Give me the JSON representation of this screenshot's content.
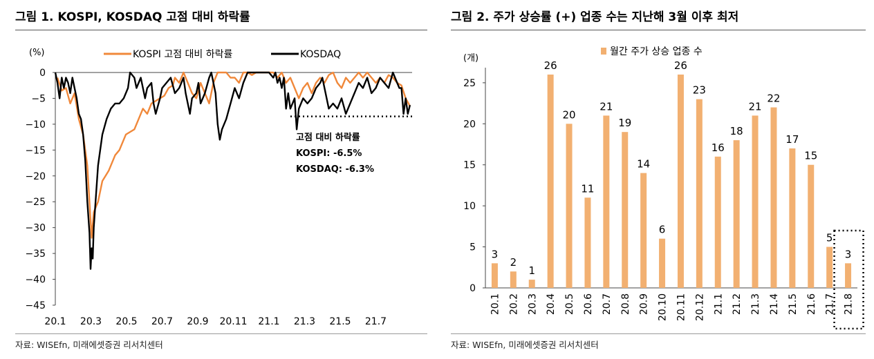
{
  "left": {
    "title": "그림 1. KOSPI, KOSDAQ 고점 대비 하락률",
    "source": "자료: WISEfn, 미래에셋증권 리서치센터",
    "chart_data": {
      "type": "line",
      "unit_label": "(%)",
      "ylim": [
        -45,
        0
      ],
      "y_ticks": [
        0,
        -5,
        -10,
        -15,
        -20,
        -25,
        -30,
        -35,
        -40,
        -45
      ],
      "y_tick_labels": [
        "0",
        "-5",
        "-10",
        "-15",
        "-20",
        "-25",
        "-30",
        "-35",
        "-40",
        "-45"
      ],
      "x_tick_labels": [
        "20.1",
        "20.3",
        "20.5",
        "20.7",
        "20.9",
        "20.11",
        "21.1",
        "21.3",
        "21.5",
        "21.7"
      ],
      "x_start": 2020.0,
      "x_end": 2021.67,
      "reference_level": -8.5,
      "annotation": {
        "heading": "고점 대비 하락률",
        "lines": [
          "KOSPI: -6.5%",
          "KOSDAQ: -6.3%"
        ]
      },
      "series": [
        {
          "name": "KOSPI 고점 대비 하락률",
          "color": "#f0883a",
          "points": [
            [
              20.01,
              -1
            ],
            [
              20.03,
              -3.5
            ],
            [
              20.05,
              -3
            ],
            [
              20.07,
              -6
            ],
            [
              20.09,
              -4
            ],
            [
              20.11,
              -9
            ],
            [
              20.13,
              -12
            ],
            [
              20.15,
              -18
            ],
            [
              20.16,
              -25
            ],
            [
              20.17,
              -32
            ],
            [
              20.18,
              -27
            ],
            [
              20.2,
              -25
            ],
            [
              20.22,
              -21
            ],
            [
              20.25,
              -19
            ],
            [
              20.28,
              -16
            ],
            [
              20.3,
              -15
            ],
            [
              20.33,
              -12
            ],
            [
              20.37,
              -11
            ],
            [
              20.39,
              -9
            ],
            [
              20.41,
              -7
            ],
            [
              20.43,
              -8
            ],
            [
              20.45,
              -6
            ],
            [
              20.47,
              -5.5
            ],
            [
              20.49,
              -5
            ],
            [
              20.51,
              -4.5
            ],
            [
              20.53,
              -3
            ],
            [
              20.55,
              -2.5
            ],
            [
              20.56,
              -1
            ],
            [
              20.58,
              -2
            ],
            [
              20.6,
              0
            ],
            [
              20.62,
              -2
            ],
            [
              20.64,
              -4
            ],
            [
              20.66,
              -5
            ],
            [
              20.68,
              -2
            ],
            [
              20.7,
              -4
            ],
            [
              20.72,
              -6
            ],
            [
              20.74,
              -2
            ],
            [
              20.76,
              0
            ],
            [
              20.78,
              0
            ],
            [
              20.8,
              0
            ],
            [
              20.82,
              -1
            ],
            [
              20.84,
              -1
            ],
            [
              20.86,
              -2
            ],
            [
              20.88,
              0
            ],
            [
              20.9,
              0
            ],
            [
              20.92,
              -0.5
            ],
            [
              20.94,
              0
            ],
            [
              21.0,
              0
            ],
            [
              21.02,
              0
            ],
            [
              21.04,
              -1
            ],
            [
              21.06,
              0
            ],
            [
              21.08,
              -2
            ],
            [
              21.1,
              -1
            ],
            [
              21.12,
              -3
            ],
            [
              21.14,
              -5
            ],
            [
              21.16,
              -3
            ],
            [
              21.18,
              -2
            ],
            [
              21.2,
              -4
            ],
            [
              21.22,
              -2
            ],
            [
              21.24,
              -1
            ],
            [
              21.26,
              -2
            ],
            [
              21.28,
              -0.5
            ],
            [
              21.3,
              0
            ],
            [
              21.32,
              -2
            ],
            [
              21.34,
              -3
            ],
            [
              21.36,
              -1
            ],
            [
              21.38,
              -2
            ],
            [
              21.4,
              -1
            ],
            [
              21.42,
              0
            ],
            [
              21.44,
              -1
            ],
            [
              21.46,
              0
            ],
            [
              21.48,
              -1
            ],
            [
              21.5,
              -2
            ],
            [
              21.52,
              -1
            ],
            [
              21.54,
              -2
            ],
            [
              21.56,
              -0.5
            ],
            [
              21.58,
              -1
            ],
            [
              21.6,
              -2
            ],
            [
              21.62,
              -2.5
            ],
            [
              21.64,
              -5
            ],
            [
              21.66,
              -6.5
            ]
          ]
        },
        {
          "name": "KOSDAQ",
          "color": "#000000",
          "points": [
            [
              20.0,
              0
            ],
            [
              20.01,
              -2
            ],
            [
              20.02,
              -5
            ],
            [
              20.03,
              -1
            ],
            [
              20.04,
              -3
            ],
            [
              20.05,
              -1
            ],
            [
              20.06,
              -2
            ],
            [
              20.07,
              -4
            ],
            [
              20.08,
              -1
            ],
            [
              20.09,
              -3
            ],
            [
              20.1,
              -5
            ],
            [
              20.11,
              -8
            ],
            [
              20.12,
              -9
            ],
            [
              20.13,
              -12
            ],
            [
              20.14,
              -17
            ],
            [
              20.15,
              -25
            ],
            [
              20.16,
              -31
            ],
            [
              20.165,
              -38
            ],
            [
              20.17,
              -34
            ],
            [
              20.175,
              -36
            ],
            [
              20.18,
              -30
            ],
            [
              20.19,
              -24
            ],
            [
              20.2,
              -18
            ],
            [
              20.22,
              -12
            ],
            [
              20.24,
              -9
            ],
            [
              20.26,
              -7
            ],
            [
              20.28,
              -6
            ],
            [
              20.3,
              -6
            ],
            [
              20.32,
              -5
            ],
            [
              20.34,
              -3
            ],
            [
              20.35,
              0
            ],
            [
              20.37,
              -1
            ],
            [
              20.38,
              -3
            ],
            [
              20.4,
              -1
            ],
            [
              20.42,
              -5
            ],
            [
              20.43,
              -3
            ],
            [
              20.45,
              -2
            ],
            [
              20.46,
              -6
            ],
            [
              20.47,
              -8
            ],
            [
              20.49,
              -5
            ],
            [
              20.5,
              -3
            ],
            [
              20.52,
              -2
            ],
            [
              20.54,
              -1
            ],
            [
              20.56,
              -4
            ],
            [
              20.58,
              -3
            ],
            [
              20.6,
              -1
            ],
            [
              20.61,
              -4
            ],
            [
              20.62,
              -6
            ],
            [
              20.63,
              -8
            ],
            [
              20.64,
              -5
            ],
            [
              20.66,
              -4
            ],
            [
              20.67,
              -2
            ],
            [
              20.68,
              -6
            ],
            [
              20.7,
              -4
            ],
            [
              20.72,
              -1
            ],
            [
              20.73,
              0
            ],
            [
              20.75,
              -4
            ],
            [
              20.76,
              -10
            ],
            [
              20.77,
              -13
            ],
            [
              20.78,
              -11
            ],
            [
              20.8,
              -9
            ],
            [
              20.82,
              -6
            ],
            [
              20.84,
              -3
            ],
            [
              20.86,
              -5
            ],
            [
              20.88,
              -2
            ],
            [
              20.9,
              0
            ],
            [
              20.93,
              0
            ],
            [
              20.96,
              0
            ],
            [
              21.0,
              0
            ],
            [
              21.02,
              -1
            ],
            [
              21.03,
              0
            ],
            [
              21.04,
              -2
            ],
            [
              21.05,
              -1
            ],
            [
              21.06,
              -3
            ],
            [
              21.07,
              -1
            ],
            [
              21.08,
              -7
            ],
            [
              21.09,
              -4
            ],
            [
              21.1,
              -7
            ],
            [
              21.12,
              -5
            ],
            [
              21.13,
              -11
            ],
            [
              21.14,
              -7
            ],
            [
              21.16,
              -5
            ],
            [
              21.18,
              -6
            ],
            [
              21.2,
              -5
            ],
            [
              21.22,
              -3
            ],
            [
              21.24,
              -2
            ],
            [
              21.25,
              -1
            ],
            [
              21.26,
              -3
            ],
            [
              21.27,
              -5
            ],
            [
              21.28,
              -7
            ],
            [
              21.3,
              -6
            ],
            [
              21.32,
              -7
            ],
            [
              21.34,
              -5
            ],
            [
              21.36,
              -8
            ],
            [
              21.38,
              -6
            ],
            [
              21.4,
              -4
            ],
            [
              21.42,
              -2
            ],
            [
              21.44,
              -3
            ],
            [
              21.46,
              -1
            ],
            [
              21.48,
              -4
            ],
            [
              21.5,
              -3
            ],
            [
              21.52,
              -1
            ],
            [
              21.54,
              -2
            ],
            [
              21.56,
              -3
            ],
            [
              21.58,
              0
            ],
            [
              21.6,
              -2
            ],
            [
              21.61,
              -3
            ],
            [
              21.62,
              -3
            ],
            [
              21.63,
              -8
            ],
            [
              21.64,
              -5
            ],
            [
              21.65,
              -8
            ],
            [
              21.66,
              -6.3
            ]
          ]
        }
      ]
    }
  },
  "right": {
    "title": "그림 2. 주가 상승률 (+) 업종 수는 지난해 3월 이후 최저",
    "source": "자료: WISEfn, 미래에셋증권 리서치센터",
    "chart_data": {
      "type": "bar",
      "unit_label": "(개)",
      "ylim": [
        0,
        26
      ],
      "y_ticks": [
        0,
        5,
        10,
        15,
        20,
        25
      ],
      "categories": [
        "20.1",
        "20.2",
        "20.3",
        "20.4",
        "20.5",
        "20.6",
        "20.7",
        "20.8",
        "20.9",
        "20.10",
        "20.11",
        "20.12",
        "21.1",
        "21.2",
        "21.3",
        "21.4",
        "21.5",
        "21.6",
        "21.7",
        "21.8"
      ],
      "values": [
        3,
        2,
        1,
        26,
        20,
        11,
        21,
        19,
        14,
        6,
        26,
        23,
        16,
        18,
        21,
        22,
        17,
        15,
        5,
        3
      ],
      "series": [
        {
          "name": "월간 주가 상승 업종 수",
          "color": "#f2b071"
        }
      ],
      "highlight_category": "21.8"
    }
  }
}
